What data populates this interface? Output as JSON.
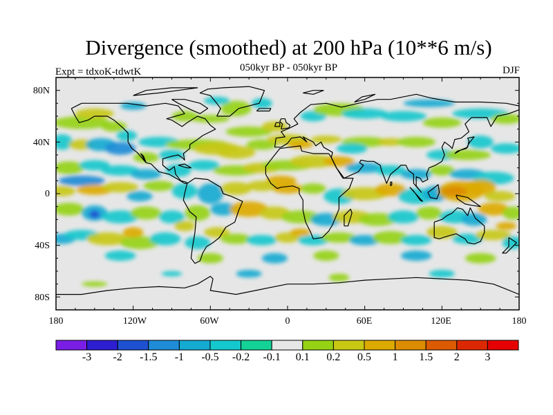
{
  "header": {
    "title": "Divergence (smoothed) at 200 hPa (10**6 m/s)",
    "subtitle_center": "050kyr BP - 050kyr BP",
    "subtitle_left": "Expt = tdxoK-tdwtK",
    "subtitle_right": "DJF"
  },
  "axes": {
    "y_ticks": [
      "80N",
      "40N",
      "0",
      "40S",
      "80S"
    ],
    "x_ticks": [
      "180",
      "120W",
      "60W",
      "0",
      "60E",
      "120E",
      "180"
    ],
    "lon_range": [
      -180,
      180
    ],
    "lat_range": [
      -90,
      90
    ]
  },
  "colorbar": {
    "labels": [
      "-3",
      "-2",
      "-1.5",
      "-1",
      "-0.5",
      "-0.2",
      "-0.1",
      "0.1",
      "0.2",
      "0.5",
      "1",
      "1.5",
      "2",
      "3"
    ],
    "colors": [
      "#7a1ee6",
      "#2d1ed2",
      "#1e50d2",
      "#1e8cd7",
      "#14aad2",
      "#14c8cd",
      "#14d296",
      "#e6e6e6",
      "#96d214",
      "#c8c814",
      "#dcaa00",
      "#dc8c00",
      "#dc5a00",
      "#dc2800",
      "#e60000"
    ]
  },
  "map": {
    "background_color": "#e6e6e6",
    "coastline_color": "#000000"
  }
}
